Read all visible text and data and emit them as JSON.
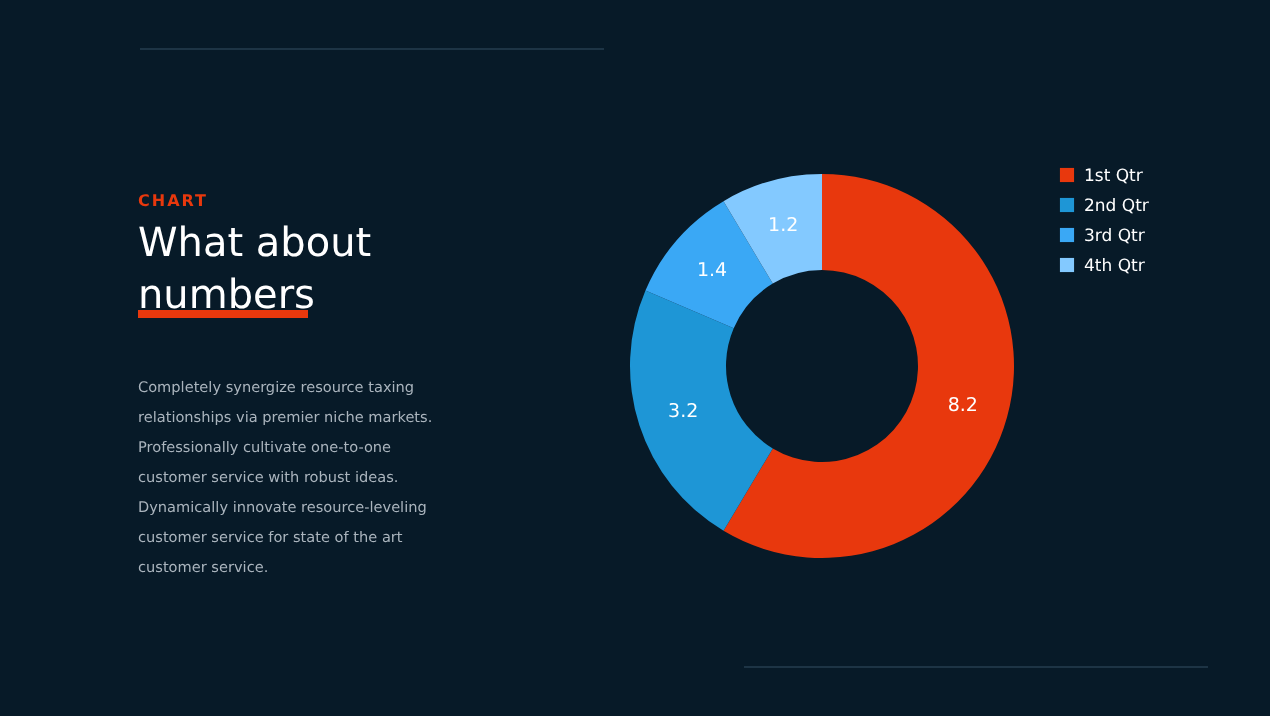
{
  "chart_data": {
    "type": "donut",
    "title": "What about numbers",
    "categories": [
      "1st Qtr",
      "2nd Qtr",
      "3rd Qtr",
      "4th Qtr"
    ],
    "values": [
      8.2,
      3.2,
      1.4,
      1.2
    ],
    "colors": [
      "#e8380d",
      "#1e96d6",
      "#3aa8f5",
      "#83c9ff"
    ],
    "data_labels": true,
    "legend": "right",
    "annotations": [
      "CHART",
      "Completely synergize resource taxing relationships via premier niche markets. Professionally cultivate one-to-one customer service with robust ideas. Dynamically innovate resource-leveling customer service for state of the art customer service."
    ]
  }
}
